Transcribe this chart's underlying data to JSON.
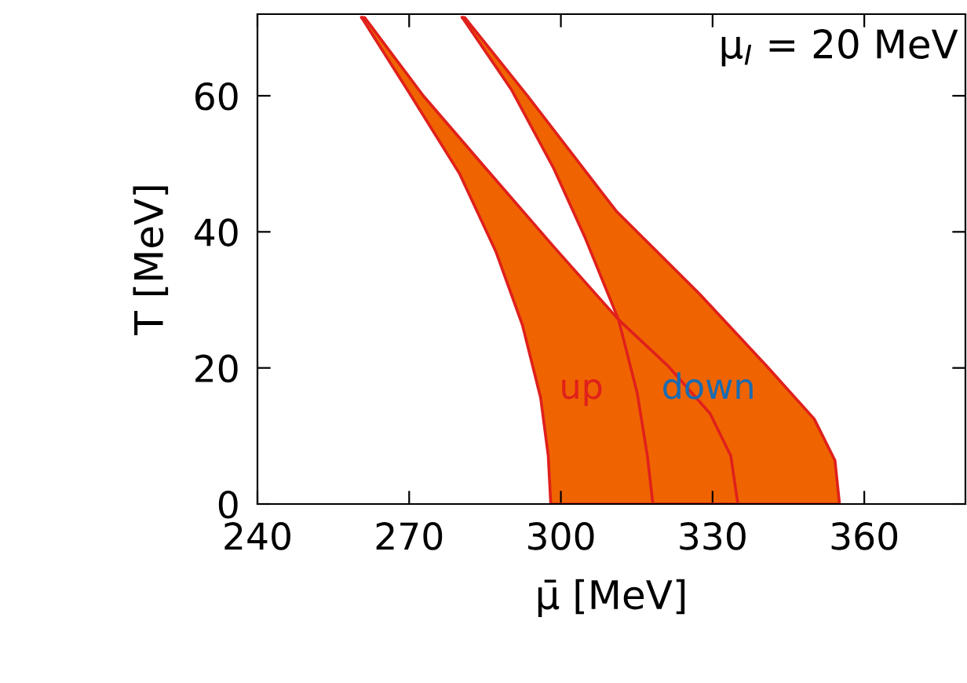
{
  "chart_data": {
    "type": "area",
    "xlabel": "μ̄ [MeV]",
    "ylabel": "T [MeV]",
    "xlim": [
      240,
      380
    ],
    "xticks": [
      240,
      270,
      300,
      330,
      360
    ],
    "ylim": [
      0,
      72
    ],
    "yticks": [
      0,
      20,
      40,
      60
    ],
    "grid": false,
    "legend": false,
    "series": [
      {
        "name": "up",
        "color": "#ef6400",
        "x": [
          260.6,
          269.7,
          280.0,
          287.2,
          292.4,
          296.0,
          297.5,
          298.0,
          335.0,
          333.6,
          329.5,
          321.3,
          311.4,
          298.6,
          285.2,
          272.8,
          261.2
        ],
        "values": [
          71.5,
          60.8,
          48.5,
          37.0,
          26.3,
          15.6,
          7.1,
          0,
          0,
          7.1,
          13.3,
          20.2,
          27.1,
          37.8,
          49.3,
          60,
          71.5
        ]
      },
      {
        "name": "down",
        "color": "#ef6400",
        "x": [
          280.5,
          290.3,
          298.6,
          304.7,
          311.4,
          315.1,
          317.1,
          318.2,
          355.1,
          354.2,
          350.1,
          340.8,
          327.4,
          310.9,
          293.4,
          281.0
        ],
        "values": [
          71.5,
          60.8,
          49.3,
          39.3,
          27.1,
          16.3,
          7.1,
          0,
          0,
          6.4,
          12.5,
          20.2,
          30.9,
          43.1,
          60,
          71.5
        ]
      }
    ],
    "annotations": [
      "μ$_{I}$ = 20 MeV"
    ]
  }
}
